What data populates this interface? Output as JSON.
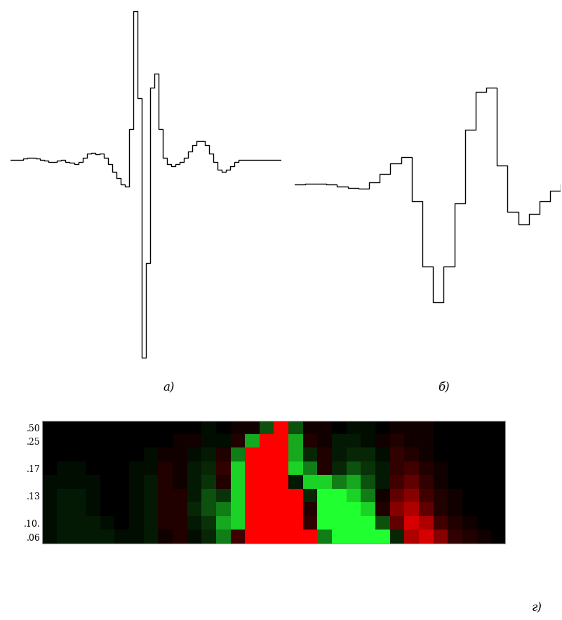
{
  "chart_data": [
    {
      "type": "line",
      "title": "а)",
      "line_style": "steps",
      "color": "#000000",
      "tick_labels": false,
      "xlim": [
        0,
        64
      ],
      "ylim": [
        -9.8,
        7.4
      ],
      "values": [
        0,
        0,
        0,
        0.05,
        0.1,
        0.1,
        0.05,
        0,
        -0.05,
        -0.1,
        -0.1,
        -0.05,
        0,
        -0.1,
        -0.15,
        -0.2,
        -0.1,
        0.1,
        0.3,
        0.35,
        0.25,
        0.3,
        0.1,
        -0.2,
        -0.6,
        -0.9,
        -1.2,
        -1.3,
        1.5,
        7.2,
        3.0,
        -9.6,
        -5.0,
        3.5,
        4.2,
        1.5,
        0.1,
        -0.2,
        -0.3,
        -0.2,
        -0.1,
        0.1,
        0.4,
        0.7,
        0.9,
        0.9,
        0.7,
        0.3,
        -0.1,
        -0.5,
        -0.6,
        -0.5,
        -0.3,
        -0.1,
        0,
        0,
        0,
        0,
        0,
        0,
        0,
        0,
        0,
        0,
        0
      ]
    },
    {
      "type": "line",
      "title": "б)",
      "line_style": "steps",
      "color": "#000000",
      "tick_labels": false,
      "xlim": [
        0,
        25
      ],
      "ylim": [
        -7.9,
        5.4
      ],
      "values": [
        0,
        0.05,
        0.05,
        0,
        -0.1,
        -0.15,
        -0.2,
        0.1,
        0.5,
        1.0,
        1.3,
        -0.8,
        -3.9,
        -5.6,
        -3.9,
        -0.9,
        2.6,
        4.4,
        4.6,
        0.9,
        -1.3,
        -1.9,
        -1.4,
        -0.8,
        -0.3,
        0
      ]
    },
    {
      "type": "heatmap",
      "title": "г)",
      "tick_labels": "y",
      "zlim": [
        -9,
        9
      ],
      "rows": [
        ".50",
        ".25",
        null,
        ".17",
        null,
        ".13",
        null,
        ".10.",
        ".06"
      ],
      "cells": [
        [
          0,
          0,
          0,
          0,
          0,
          0,
          0,
          0,
          0,
          0,
          0,
          -1,
          0,
          1,
          1,
          -5,
          9,
          -5,
          1,
          1,
          0,
          -1,
          -1,
          0,
          1,
          1,
          1,
          0,
          0,
          0,
          0,
          0
        ],
        [
          0,
          0,
          0,
          0,
          0,
          0,
          0,
          0,
          0,
          1,
          1,
          -1,
          -1,
          2,
          -7,
          9,
          9,
          -7,
          2,
          1,
          -2,
          -2,
          -1,
          1,
          2,
          1,
          1,
          0,
          0,
          0,
          0,
          0
        ],
        [
          0,
          0,
          0,
          0,
          0,
          0,
          0,
          -1,
          1,
          1,
          -1,
          -2,
          2,
          -6,
          9,
          9,
          9,
          -7,
          -3,
          2,
          -2,
          -3,
          -3,
          -1,
          3,
          2,
          1,
          0,
          0,
          0,
          0,
          0
        ],
        [
          0,
          -1,
          -1,
          0,
          0,
          0,
          -1,
          -1,
          2,
          1,
          -2,
          -3,
          3,
          -8,
          9,
          9,
          9,
          -8,
          -6,
          2,
          -3,
          -5,
          -4,
          -2,
          3,
          4,
          2,
          1,
          0,
          0,
          0,
          0
        ],
        [
          -1,
          -1,
          -1,
          -1,
          0,
          0,
          -1,
          -2,
          2,
          1,
          -2,
          -4,
          2,
          -8,
          9,
          9,
          9,
          -2,
          -8,
          -8,
          -6,
          -7,
          -5,
          -2,
          4,
          5,
          3,
          1,
          0,
          0,
          0,
          0
        ],
        [
          -1,
          -2,
          -2,
          -1,
          0,
          0,
          -1,
          -2,
          2,
          2,
          -2,
          -5,
          -4,
          -8,
          9,
          9,
          9,
          9,
          -3,
          -9,
          -9,
          -8,
          -6,
          1,
          5,
          6,
          4,
          2,
          1,
          0,
          0,
          0
        ],
        [
          -1,
          -2,
          -2,
          -1,
          0,
          0,
          -1,
          -2,
          2,
          2,
          -3,
          -5,
          -6,
          -8,
          9,
          9,
          9,
          9,
          2,
          -9,
          -9,
          -9,
          -8,
          2,
          6,
          7,
          5,
          2,
          1,
          0,
          0,
          0
        ],
        [
          -1,
          -2,
          -2,
          -2,
          -1,
          0,
          -1,
          -2,
          2,
          2,
          -2,
          -4,
          -7,
          -8,
          9,
          9,
          9,
          9,
          3,
          -9,
          -9,
          -9,
          -9,
          -5,
          5,
          8,
          7,
          4,
          2,
          1,
          0,
          0
        ],
        [
          -1,
          -2,
          -2,
          -2,
          -2,
          -1,
          -1,
          -2,
          1,
          2,
          -1,
          -3,
          -6,
          4,
          9,
          9,
          9,
          9,
          9,
          -6,
          -9,
          -9,
          -9,
          -9,
          -3,
          7,
          8,
          6,
          3,
          2,
          1,
          0
        ]
      ]
    }
  ]
}
